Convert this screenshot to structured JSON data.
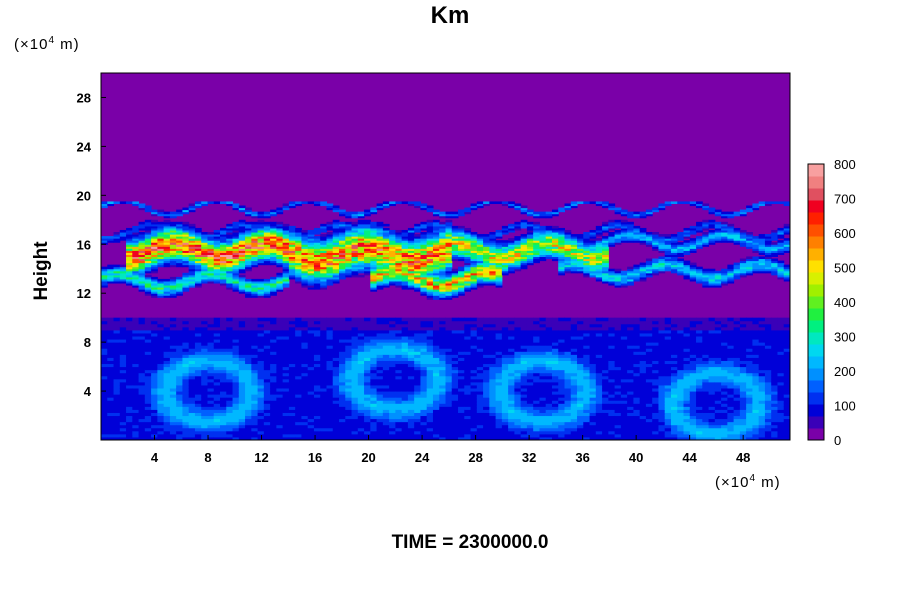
{
  "chart_data": {
    "type": "heatmap",
    "title": "Km",
    "ylabel": "Height",
    "x_unit": {
      "prefix": "(×10",
      "exp": "4",
      "suffix": " m)"
    },
    "y_unit": {
      "prefix": "(×10",
      "exp": "4",
      "suffix": " m)"
    },
    "xlim": [
      0,
      51.5
    ],
    "ylim": [
      0,
      30
    ],
    "x_ticks": [
      "4",
      "8",
      "12",
      "16",
      "20",
      "24",
      "28",
      "32",
      "36",
      "40",
      "44",
      "48"
    ],
    "y_ticks": [
      "4",
      "8",
      "12",
      "16",
      "20",
      "24",
      "28"
    ],
    "colorbar": {
      "range": [
        0,
        800
      ],
      "ticks": [
        "0",
        "100",
        "200",
        "300",
        "400",
        "500",
        "600",
        "700",
        "800"
      ],
      "colors": [
        "#7a00a8",
        "#3a00b8",
        "#0000d8",
        "#0030f0",
        "#0060ff",
        "#0090ff",
        "#00b8ff",
        "#00d8f0",
        "#00e8c0",
        "#00f080",
        "#20f040",
        "#60f020",
        "#a0f000",
        "#d8f000",
        "#ffe000",
        "#ffb000",
        "#ff8000",
        "#ff5000",
        "#ff2000",
        "#f00020",
        "#e05060",
        "#f08080",
        "#f8a0a0"
      ]
    },
    "background_color": "#7a00a8",
    "bands": [
      {
        "region": "lower turbulent layer",
        "y_range": [
          0,
          10
        ],
        "value_range": [
          50,
          300
        ]
      },
      {
        "region": "upper turbulent layer",
        "y_range": [
          11.5,
          19.5
        ],
        "value_range": [
          0,
          800
        ]
      }
    ],
    "grid": false
  },
  "footer": {
    "time": "TIME = 2300000.0"
  }
}
